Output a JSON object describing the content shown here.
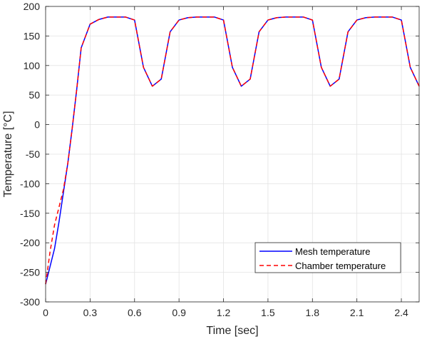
{
  "chart_data": {
    "type": "line",
    "title": "",
    "xlabel": "Time [sec]",
    "ylabel": "Temperature [°C]",
    "xlim": [
      0,
      2.52
    ],
    "ylim": [
      -300,
      200
    ],
    "xticks": [
      0,
      0.3,
      0.6,
      0.9,
      1.2,
      1.5,
      1.8,
      2.1,
      2.4
    ],
    "xtick_labels": [
      "0",
      "0.3",
      "0.6",
      "0.9",
      "1.2",
      "1.5",
      "1.8",
      "2.1",
      "2.4"
    ],
    "yticks": [
      -300,
      -250,
      -200,
      -150,
      -100,
      -50,
      0,
      50,
      100,
      150,
      200
    ],
    "ytick_labels": [
      "-300",
      "-250",
      "-200",
      "-150",
      "-100",
      "-50",
      "0",
      "50",
      "100",
      "150",
      "200"
    ],
    "grid": true,
    "legend_position": "bottom-right",
    "series": [
      {
        "name": "Mesh temperature",
        "color": "#0000ff",
        "dash": "solid",
        "x": [
          0,
          0.03,
          0.06,
          0.09,
          0.12,
          0.15,
          0.18,
          0.21,
          0.24,
          0.3,
          0.36,
          0.42,
          0.48,
          0.54,
          0.6,
          0.66,
          0.72,
          0.78,
          0.84,
          0.9,
          0.96,
          1.02,
          1.08,
          1.14,
          1.2,
          1.26,
          1.32,
          1.38,
          1.44,
          1.5,
          1.56,
          1.62,
          1.68,
          1.74,
          1.8,
          1.86,
          1.92,
          1.98,
          2.04,
          2.1,
          2.16,
          2.22,
          2.28,
          2.34,
          2.4,
          2.46,
          2.52
        ],
        "y": [
          -270,
          -240,
          -210,
          -165,
          -115,
          -65,
          -5,
          60,
          130,
          170,
          178,
          182,
          182,
          182,
          177,
          97,
          65,
          77,
          157,
          177,
          181,
          182,
          182,
          182,
          177,
          97,
          65,
          77,
          157,
          177,
          181,
          182,
          182,
          182,
          177,
          97,
          65,
          77,
          157,
          177,
          181,
          182,
          182,
          182,
          177,
          97,
          65
        ]
      },
      {
        "name": "Chamber temperature",
        "color": "#ff0000",
        "dash": "dashed",
        "x": [
          0,
          0.03,
          0.06,
          0.09,
          0.12,
          0.15,
          0.18,
          0.21,
          0.24,
          0.3,
          0.36,
          0.42,
          0.48,
          0.54,
          0.6,
          0.66,
          0.72,
          0.78,
          0.84,
          0.9,
          0.96,
          1.02,
          1.08,
          1.14,
          1.2,
          1.26,
          1.32,
          1.38,
          1.44,
          1.5,
          1.56,
          1.62,
          1.68,
          1.74,
          1.8,
          1.86,
          1.92,
          1.98,
          2.04,
          2.1,
          2.16,
          2.22,
          2.28,
          2.34,
          2.4,
          2.46,
          2.52
        ],
        "y": [
          -270,
          -215,
          -170,
          -140,
          -110,
          -65,
          -5,
          60,
          130,
          170,
          178,
          182,
          182,
          182,
          177,
          97,
          65,
          77,
          157,
          177,
          181,
          182,
          182,
          182,
          177,
          97,
          65,
          77,
          157,
          177,
          181,
          182,
          182,
          182,
          177,
          97,
          65,
          77,
          157,
          177,
          181,
          182,
          182,
          182,
          177,
          97,
          65
        ]
      }
    ]
  }
}
